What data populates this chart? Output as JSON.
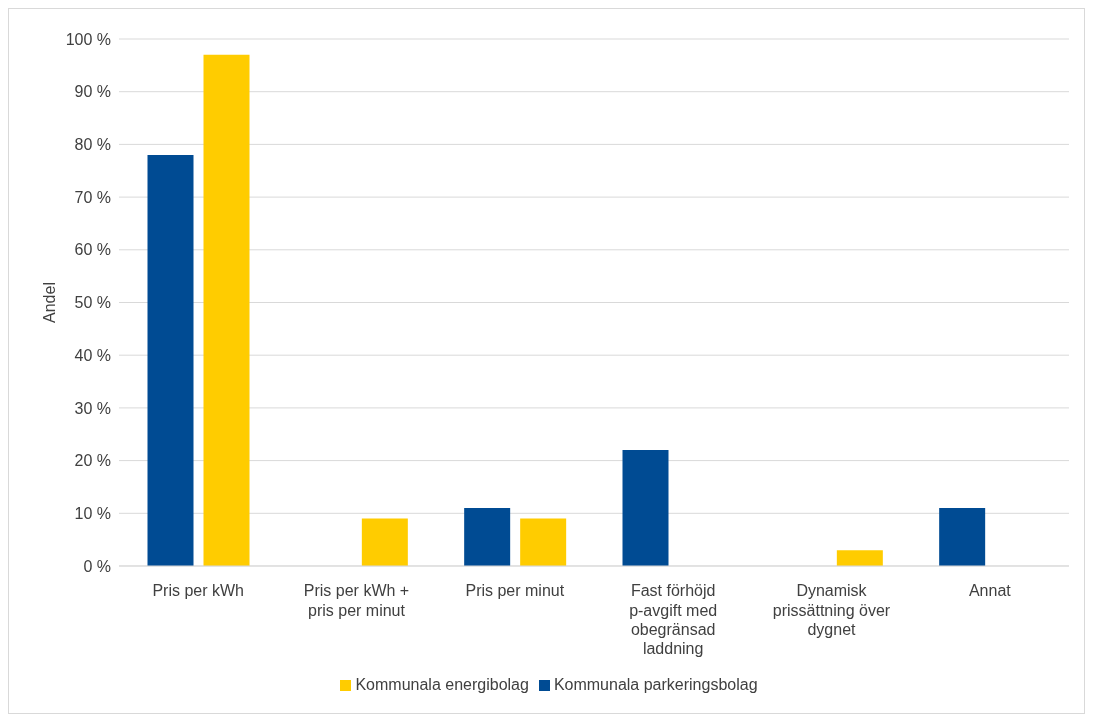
{
  "chart_data": {
    "type": "bar",
    "ylabel": "Andel",
    "categories": [
      "Pris per kWh",
      "Pris per kWh + pris per minut",
      "Pris per minut",
      "Fast förhöjd p-avgift med obegränsad laddning",
      "Dynamisk prissättning över dygnet",
      "Annat"
    ],
    "series": [
      {
        "name": "Kommunala parkeringsbolag",
        "color": "#004b93",
        "values": [
          78,
          0,
          11,
          22,
          0,
          11
        ]
      },
      {
        "name": "Kommunala energibolag",
        "color": "#ffcc00",
        "values": [
          97,
          9,
          9,
          0,
          3,
          0
        ]
      }
    ],
    "ylim": [
      0,
      100
    ],
    "yticks": [
      {
        "value": 0,
        "label": "0 %"
      },
      {
        "value": 10,
        "label": "10 %"
      },
      {
        "value": 20,
        "label": "20 %"
      },
      {
        "value": 30,
        "label": "30 %"
      },
      {
        "value": 40,
        "label": "40 %"
      },
      {
        "value": 50,
        "label": "50 %"
      },
      {
        "value": 60,
        "label": "60 %"
      },
      {
        "value": 70,
        "label": "70 %"
      },
      {
        "value": 80,
        "label": "80 %"
      },
      {
        "value": 90,
        "label": "90 %"
      },
      {
        "value": 100,
        "label": "100 %"
      }
    ],
    "grid": "y",
    "legend": "bottom"
  }
}
